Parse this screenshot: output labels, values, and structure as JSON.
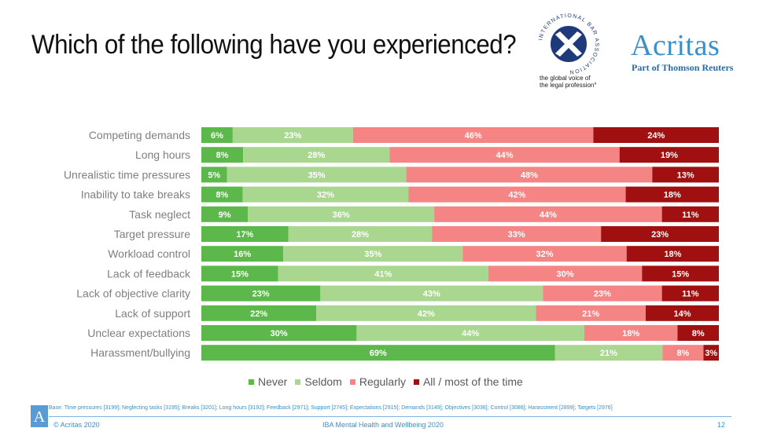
{
  "header": {
    "title": "Which of the following have you experienced?",
    "iba_tagline_line1": "the global voice of",
    "iba_tagline_line2": "the legal profession°",
    "iba_ring_text": "INTERNATIONAL BAR ASSOCIATION",
    "acritas_name": "Acritas",
    "acritas_sub": "Part of Thomson Reuters"
  },
  "colors": {
    "never": "#5cb84a",
    "seldom": "#a9d78f",
    "regularly": "#f48584",
    "all_most": "#a01010",
    "brand_blue": "#3d8fc9",
    "iba_navy": "#1f3a7a"
  },
  "chart_data": {
    "type": "bar",
    "orientation": "horizontal",
    "stacked": true,
    "percent_stacked": true,
    "categories": [
      "Competing demands",
      "Long hours",
      "Unrealistic time pressures",
      "Inability to take breaks",
      "Task neglect",
      "Target pressure",
      "Workload control",
      "Lack of feedback",
      "Lack of objective clarity",
      "Lack of support",
      "Unclear expectations",
      "Harassment/bullying"
    ],
    "series": [
      {
        "name": "Never",
        "color": "#5cb84a",
        "values": [
          6,
          8,
          5,
          8,
          9,
          17,
          16,
          15,
          23,
          22,
          30,
          69
        ]
      },
      {
        "name": "Seldom",
        "color": "#a9d78f",
        "values": [
          23,
          28,
          35,
          32,
          36,
          28,
          35,
          41,
          43,
          42,
          44,
          21
        ]
      },
      {
        "name": "Regularly",
        "color": "#f48584",
        "values": [
          46,
          44,
          48,
          42,
          44,
          33,
          32,
          30,
          23,
          21,
          18,
          8
        ]
      },
      {
        "name": "All / most of the time",
        "color": "#a01010",
        "values": [
          24,
          19,
          13,
          18,
          11,
          23,
          18,
          15,
          11,
          14,
          8,
          3
        ]
      }
    ],
    "data_label_suffix": "%",
    "legend_position": "bottom",
    "grid": false
  },
  "footer": {
    "base_note": "Base: Time pressures [3199]; Neglecting tasks [3195]; Breaks [3201]; Long hours [3192]; Feedback [2971]; Support [2745]; Expectations [2915]; Demands [3149]; Objectives [3036]; Control [3086]; Harassment [2899]; Targets [2976]",
    "copyright": "© Acritas 2020",
    "report_name": "IBA Mental Health and Wellbeing 2020",
    "page_number": "12",
    "a_logo": "A"
  }
}
